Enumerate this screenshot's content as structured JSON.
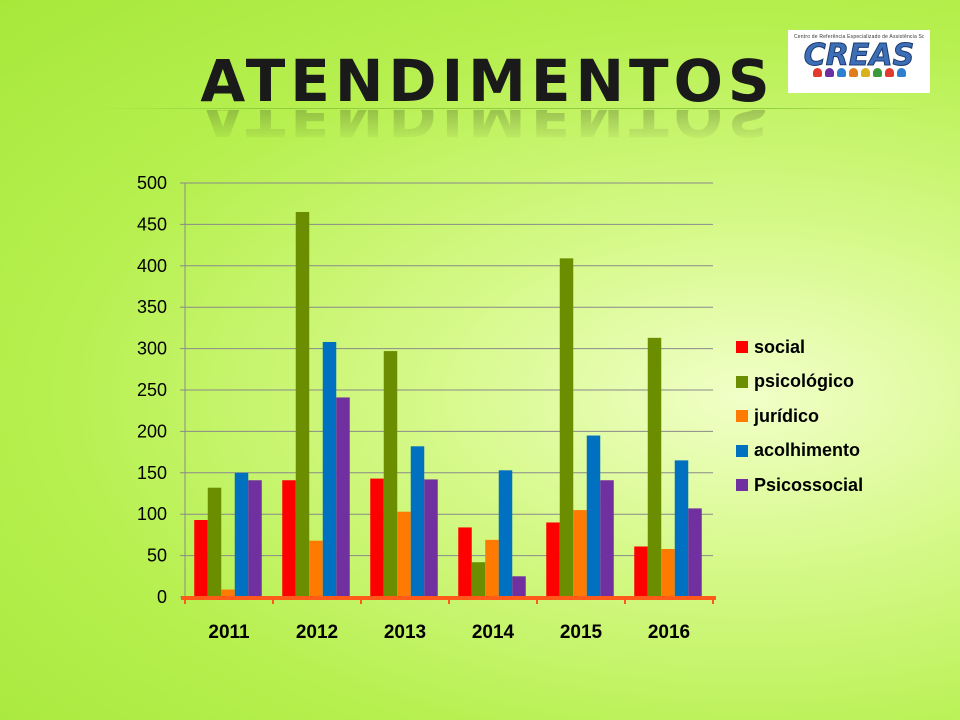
{
  "slide": {
    "title": "ATENDIMENTOS"
  },
  "logo": {
    "subtitle": "Centro de Referência Especializado de Assistência Social",
    "word": "CREAS",
    "figure_colors": [
      "#e23b2e",
      "#6a2fa0",
      "#2f7fd0",
      "#e07d1a",
      "#d8b21a",
      "#3a9a3a",
      "#e23b2e",
      "#2f7fd0"
    ]
  },
  "chart_data": {
    "type": "bar",
    "title": "",
    "xlabel": "",
    "ylabel": "",
    "ylim": [
      0,
      500
    ],
    "yticks": [
      0,
      50,
      100,
      150,
      200,
      250,
      300,
      350,
      400,
      450,
      500
    ],
    "grid": true,
    "legend_position": "right",
    "categories": [
      "2011",
      "2012",
      "2013",
      "2014",
      "2015",
      "2016"
    ],
    "series": [
      {
        "name": "social",
        "color": "#ff0000",
        "values": [
          93,
          141,
          143,
          84,
          90,
          61
        ]
      },
      {
        "name": "psicológico",
        "color": "#6b8e00",
        "values": [
          132,
          465,
          297,
          42,
          409,
          313
        ]
      },
      {
        "name": "jurídico",
        "color": "#ff7a00",
        "values": [
          9,
          68,
          103,
          69,
          105,
          58
        ]
      },
      {
        "name": "acolhimento",
        "color": "#0070c0",
        "values": [
          150,
          308,
          182,
          153,
          195,
          165
        ]
      },
      {
        "name": "Psicossocial",
        "color": "#7030a0",
        "values": [
          141,
          241,
          142,
          25,
          141,
          107
        ]
      }
    ]
  }
}
